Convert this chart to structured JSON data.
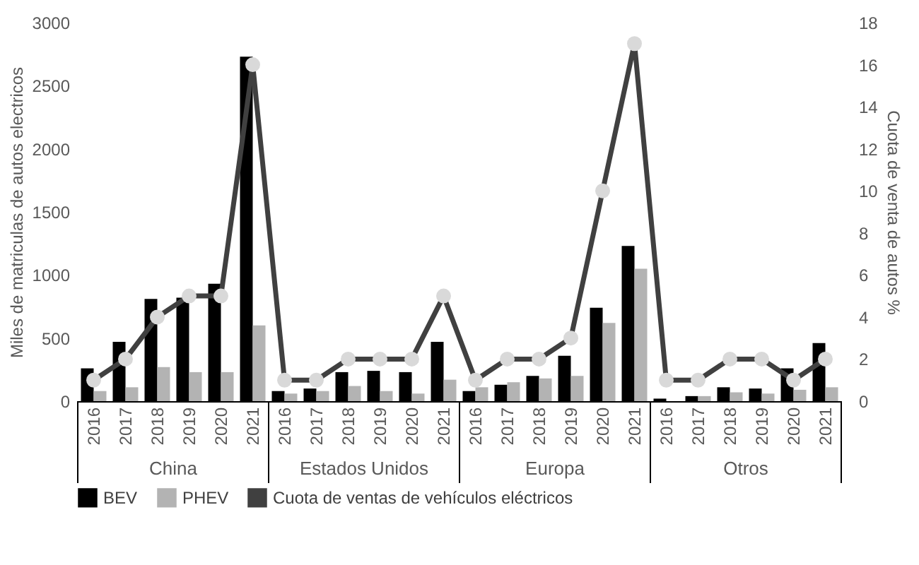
{
  "chart_data": {
    "type": "bar",
    "xlabel": null,
    "ylabel": "Miles de matriculas de autos electricos",
    "y2label": "Cuota de venta de autos %",
    "categories": [
      "2016",
      "2017",
      "2018",
      "2019",
      "2020",
      "2021",
      "2016",
      "2017",
      "2018",
      "2019",
      "2020",
      "2021",
      "2016",
      "2017",
      "2018",
      "2019",
      "2020",
      "2021",
      "2016",
      "2017",
      "2018",
      "2019",
      "2020",
      "2021"
    ],
    "series": [
      {
        "name": "BEV",
        "color": "#000000",
        "values": [
          260,
          470,
          810,
          820,
          930,
          2730,
          80,
          100,
          230,
          240,
          230,
          470,
          80,
          130,
          200,
          360,
          740,
          1230,
          20,
          40,
          110,
          100,
          260,
          460
        ]
      },
      {
        "name": "PHEV",
        "color": "#b3b3b3",
        "values": [
          80,
          110,
          270,
          230,
          230,
          600,
          60,
          80,
          120,
          80,
          60,
          170,
          110,
          150,
          180,
          200,
          620,
          1050,
          null,
          40,
          70,
          60,
          90,
          110
        ]
      },
      {
        "name": "Cuota de ventas de vehículos eléctricos",
        "type": "line",
        "axis": "y2",
        "color": "#404040",
        "marker": "circle",
        "values": [
          1,
          2,
          4,
          5,
          5,
          16,
          1,
          1,
          2,
          2,
          2,
          5,
          1,
          2,
          2,
          3,
          10,
          17,
          1,
          1,
          2,
          2,
          1,
          2
        ]
      }
    ],
    "ylim": [
      0,
      3000
    ],
    "yticks": [
      0,
      500,
      1000,
      1500,
      2000,
      2500,
      3000
    ],
    "y2lim": [
      0,
      18
    ],
    "y2ticks": [
      0,
      2,
      4,
      6,
      8,
      10,
      12,
      14,
      16,
      18
    ],
    "annotations": [
      "China",
      "Estados Unidos",
      "Europa",
      "Otros"
    ],
    "legend": "bottom",
    "grid": false
  }
}
